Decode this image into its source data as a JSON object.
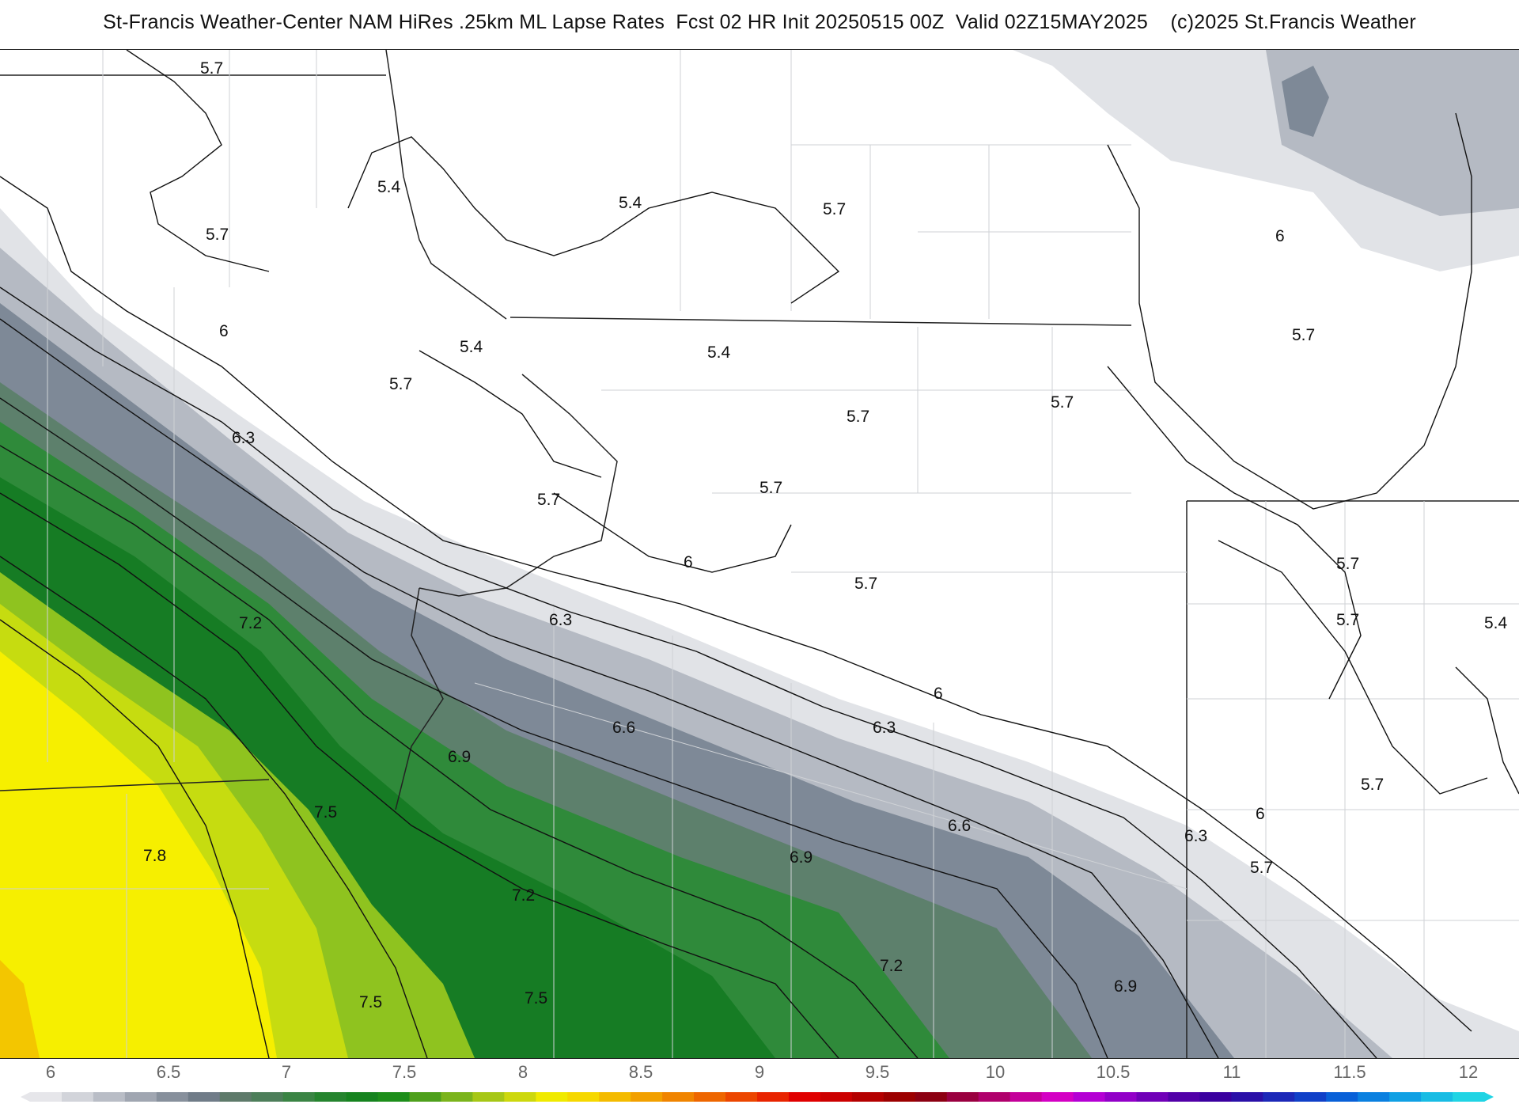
{
  "title": "St-Francis Weather-Center NAM HiRes .25km ML Lapse Rates  Fcst 02 HR Init 20250515 00Z  Valid 02Z15MAY2025    (c)2025 St.Francis Weather",
  "map": {
    "contour_labels": [
      "5.7",
      "5.4",
      "5.7",
      "5.4",
      "5.7",
      "6",
      "6.3",
      "5.4",
      "5.4",
      "5.7",
      "5.7",
      "5.7",
      "5.7",
      "5.7",
      "5.7",
      "6",
      "5.7",
      "6.3",
      "7.2",
      "6.6",
      "6",
      "6.3",
      "6.9",
      "7.5",
      "7.8",
      "6.6",
      "6.9",
      "7.2",
      "7.5",
      "7.5",
      "7.2",
      "6.9",
      "6.3",
      "6",
      "5.7",
      "5.7",
      "5.7",
      "5.4",
      "5.7",
      "6"
    ],
    "fill_colors": {
      "white": "#ffffff",
      "light_gray": "#e1e3e7",
      "mid_gray": "#b5bac3",
      "slate": "#7e8997",
      "gray_green": "#5d806c",
      "green": "#2f8a3a",
      "dark_green": "#167c24",
      "yellow_green": "#8fc31f",
      "lime": "#c6dc10",
      "yellow": "#f6ef00",
      "gold": "#f3c600"
    }
  },
  "colorbar": {
    "labels": [
      "6",
      "6.5",
      "7",
      "7.5",
      "8",
      "8.5",
      "9",
      "9.5",
      "10",
      "10.5",
      "11",
      "11.5",
      "12"
    ],
    "colors": [
      "#e6e6ea",
      "#d2d4da",
      "#b9bdc6",
      "#a0a6b1",
      "#87909c",
      "#707c88",
      "#5e7a6a",
      "#4d7e5a",
      "#3a8444",
      "#25842e",
      "#16831f",
      "#1d8e1a",
      "#4ea01c",
      "#7bb41c",
      "#a6c716",
      "#cdd80d",
      "#f0ea00",
      "#f6d800",
      "#f4bb00",
      "#f2a000",
      "#f08400",
      "#ee6600",
      "#ec4600",
      "#e82400",
      "#e00000",
      "#cc0000",
      "#b40000",
      "#9c0000",
      "#8c0012",
      "#9a0040",
      "#b0006c",
      "#c4009a",
      "#d400c4",
      "#b400d4",
      "#9200c8",
      "#7000b8",
      "#5200a8",
      "#3a00a0",
      "#2a10a8",
      "#1c28b8",
      "#1040c8",
      "#0860d8",
      "#0a80e0",
      "#10a0e4",
      "#18bce4",
      "#20d4e4"
    ]
  }
}
